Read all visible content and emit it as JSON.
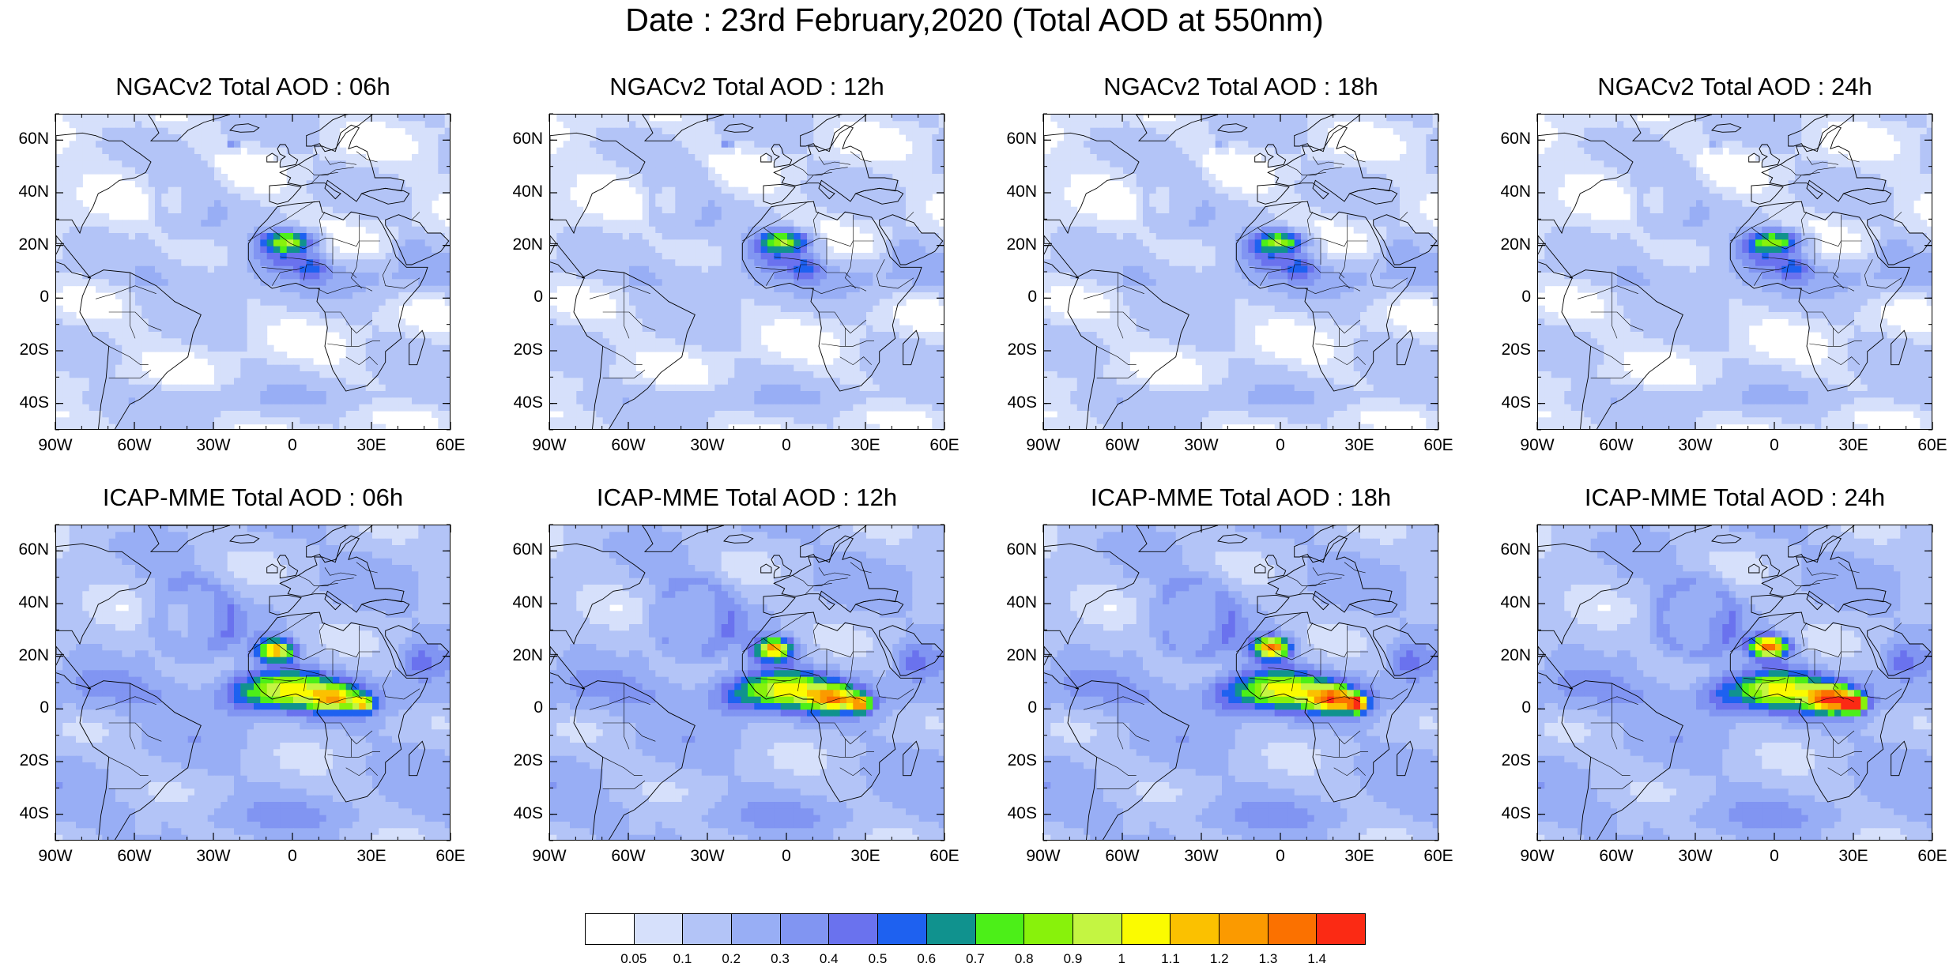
{
  "figure": {
    "title": "Date : 23rd February,2020 (Total AOD at 550nm)"
  },
  "axes": {
    "lon_range": [
      -90,
      60
    ],
    "lat_range": [
      -50,
      70
    ],
    "y_ticks": [
      {
        "value": 60,
        "label": "60N"
      },
      {
        "value": 40,
        "label": "40N"
      },
      {
        "value": 20,
        "label": "20N"
      },
      {
        "value": 0,
        "label": "0"
      },
      {
        "value": -20,
        "label": "20S"
      },
      {
        "value": -40,
        "label": "40S"
      }
    ],
    "x_ticks": [
      {
        "value": -90,
        "label": "90W"
      },
      {
        "value": -60,
        "label": "60W"
      },
      {
        "value": -30,
        "label": "30W"
      },
      {
        "value": 0,
        "label": "0"
      },
      {
        "value": 30,
        "label": "30E"
      },
      {
        "value": 60,
        "label": "60E"
      }
    ]
  },
  "panels": [
    {
      "title": "NGACv2 Total AOD : 06h",
      "model": "NGACv2",
      "hour": 6
    },
    {
      "title": "NGACv2 Total AOD : 12h",
      "model": "NGACv2",
      "hour": 12
    },
    {
      "title": "NGACv2 Total AOD : 18h",
      "model": "NGACv2",
      "hour": 18
    },
    {
      "title": "NGACv2 Total AOD : 24h",
      "model": "NGACv2",
      "hour": 24
    },
    {
      "title": "ICAP-MME Total AOD : 06h",
      "model": "ICAP-MME",
      "hour": 6
    },
    {
      "title": "ICAP-MME Total AOD : 12h",
      "model": "ICAP-MME",
      "hour": 12
    },
    {
      "title": "ICAP-MME Total AOD : 18h",
      "model": "ICAP-MME",
      "hour": 18
    },
    {
      "title": "ICAP-MME Total AOD : 24h",
      "model": "ICAP-MME",
      "hour": 24
    }
  ],
  "colorbar": {
    "colors": [
      "#ffffff",
      "#d6e0fb",
      "#b3c4f7",
      "#98aef5",
      "#8195f2",
      "#6a72ee",
      "#1e61f0",
      "#10928e",
      "#4cef18",
      "#88f20b",
      "#c4f542",
      "#fbfb00",
      "#fbc100",
      "#fb9a00",
      "#fb7100",
      "#fb2a14"
    ],
    "labels": [
      "0.05",
      "0.1",
      "0.2",
      "0.3",
      "0.4",
      "0.5",
      "0.6",
      "0.7",
      "0.8",
      "0.9",
      "1",
      "1.1",
      "1.2",
      "1.3",
      "1.4"
    ]
  }
}
